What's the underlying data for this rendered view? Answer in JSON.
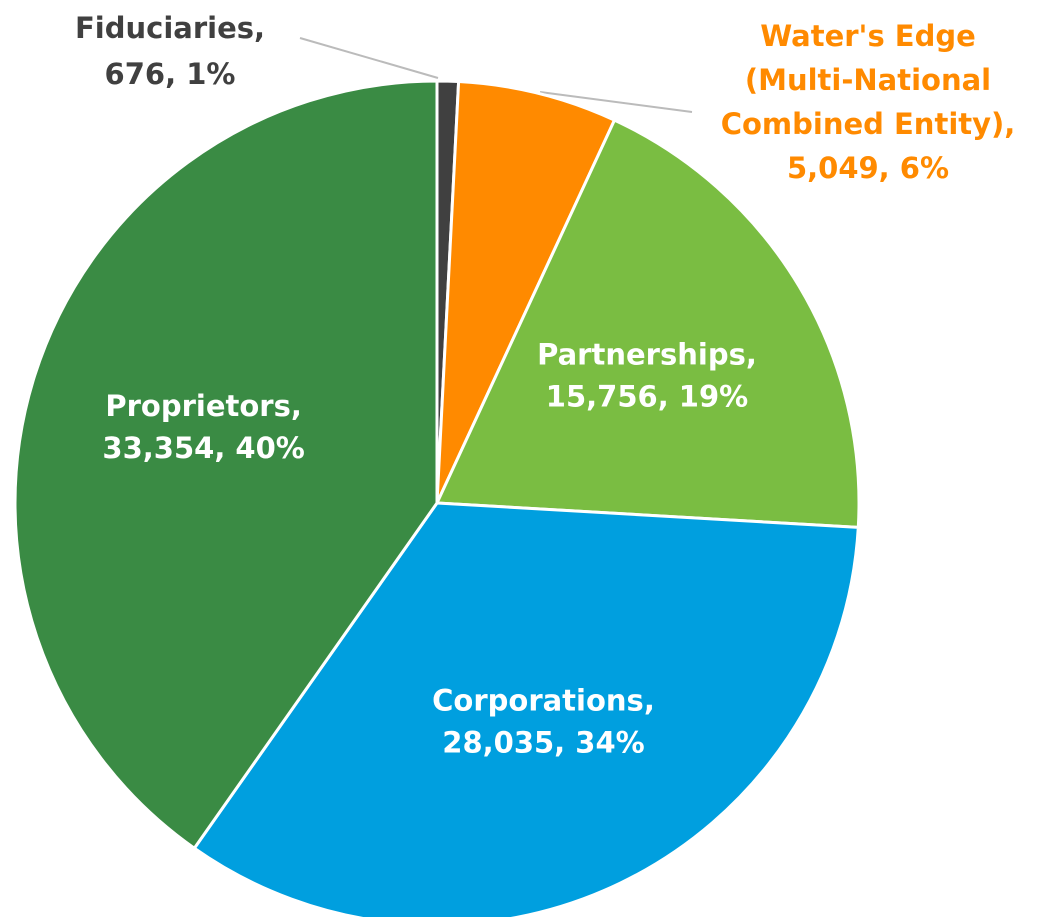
{
  "chart_data": {
    "type": "pie",
    "values": [
      676,
      5049,
      15756,
      28035,
      33354
    ],
    "colors": [
      "#404040",
      "#ff8a00",
      "#7abd42",
      "#009fdf",
      "#3a8b44"
    ],
    "labels": [
      [
        "Fiduciaries,",
        "676, 1%"
      ],
      [
        "Water's Edge",
        "(Multi-National",
        "Combined Entity),",
        "5,049, 6%"
      ],
      [
        "Partnerships,",
        "15,756, 19%"
      ],
      [
        "Corporations,",
        "28,035, 34%"
      ],
      [
        "Proprietors,",
        "33,354, 40%"
      ]
    ]
  }
}
